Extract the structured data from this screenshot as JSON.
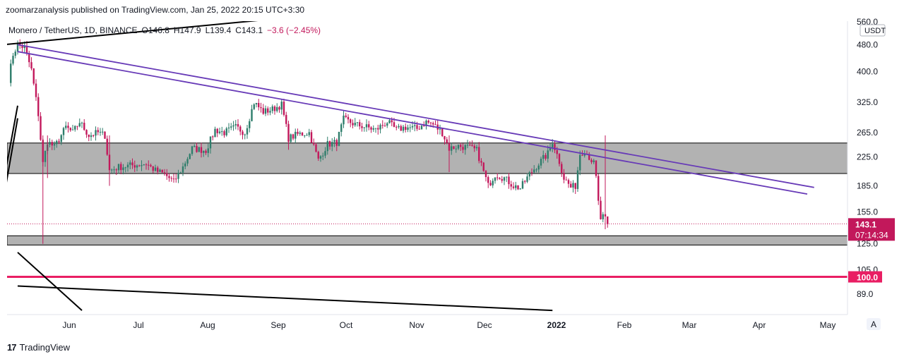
{
  "header": {
    "publisher": "zoomarzanalysis published on TradingView.com, Jan 25, 2022 20:15 UTC+3:30"
  },
  "legend": {
    "symbol": "Monero / TetherUS, 1D, BINANCE",
    "open": "O146.8",
    "high": "H147.9",
    "low": "L139.4",
    "close": "C143.1",
    "change": "−3.6 (−2.45%)"
  },
  "axis": {
    "currency_button": "USDT",
    "auto_button": "A",
    "current_price": "143.1",
    "countdown": "07:14:34",
    "level_label": "100.0"
  },
  "colors": {
    "up": "#26a69a",
    "down": "#ef5350",
    "candle_up": "#2e7d6b",
    "candle_down": "#c2185b",
    "trend_purple": "#673ab7",
    "trend_black": "#000000",
    "level_red": "#e91e63",
    "zone_fill": "#b2b2b2"
  },
  "footer": {
    "brand_mark": "17",
    "brand_name": "TradingView"
  },
  "chart_data": {
    "type": "candlestick",
    "title": "Monero / TetherUS, 1D, BINANCE",
    "scale": "log",
    "ylim": [
      80,
      560
    ],
    "y_ticks": [
      "560.0",
      "480.0",
      "400.0",
      "325.0",
      "265.0",
      "225.0",
      "185.0",
      "155.0",
      "125.0",
      "105.0",
      "89.0"
    ],
    "x_ticks": [
      "Jun",
      "Jul",
      "Aug",
      "Sep",
      "Oct",
      "Nov",
      "Dec",
      "2022",
      "Feb",
      "Mar",
      "Apr",
      "May"
    ],
    "current_price": 143.1,
    "horizontal_levels": [
      100
    ],
    "zones": [
      [
        201,
        247
      ],
      [
        124,
        132
      ]
    ],
    "anchors": [
      {
        "date": "May 9",
        "price": 380
      },
      {
        "date": "May 11",
        "price": 450
      },
      {
        "date": "May 13",
        "price": 480
      },
      {
        "date": "May 16",
        "price": 470
      },
      {
        "date": "May 19",
        "price": 405
      },
      {
        "date": "May 22",
        "price": 300
      },
      {
        "date": "May 24",
        "price": 215
      },
      {
        "date": "May 26",
        "price": 250
      },
      {
        "date": "May 29",
        "price": 240
      },
      {
        "date": "Jun 3",
        "price": 275
      },
      {
        "date": "Jun 6",
        "price": 265
      },
      {
        "date": "Jun 9",
        "price": 285
      },
      {
        "date": "Jun 13",
        "price": 260
      },
      {
        "date": "Jun 17",
        "price": 265
      },
      {
        "date": "Jun 20",
        "price": 260
      },
      {
        "date": "Jun 22",
        "price": 205
      },
      {
        "date": "Jun 26",
        "price": 210
      },
      {
        "date": "Jul 1",
        "price": 212
      },
      {
        "date": "Jul 8",
        "price": 215
      },
      {
        "date": "Jul 12",
        "price": 205
      },
      {
        "date": "Jul 16",
        "price": 200
      },
      {
        "date": "Jul 20",
        "price": 190
      },
      {
        "date": "Jul 24",
        "price": 210
      },
      {
        "date": "Jul 28",
        "price": 238
      },
      {
        "date": "Aug 3",
        "price": 235
      },
      {
        "date": "Aug 7",
        "price": 270
      },
      {
        "date": "Aug 11",
        "price": 265
      },
      {
        "date": "Aug 16",
        "price": 275
      },
      {
        "date": "Aug 20",
        "price": 265
      },
      {
        "date": "Aug 24",
        "price": 325
      },
      {
        "date": "Aug 28",
        "price": 305
      },
      {
        "date": "Sep 1",
        "price": 310
      },
      {
        "date": "Sep 5",
        "price": 320
      },
      {
        "date": "Sep 8",
        "price": 255
      },
      {
        "date": "Sep 12",
        "price": 262
      },
      {
        "date": "Sep 17",
        "price": 265
      },
      {
        "date": "Sep 21",
        "price": 220
      },
      {
        "date": "Sep 25",
        "price": 245
      },
      {
        "date": "Sep 29",
        "price": 248
      },
      {
        "date": "Oct 2",
        "price": 290
      },
      {
        "date": "Oct 7",
        "price": 280
      },
      {
        "date": "Oct 12",
        "price": 275
      },
      {
        "date": "Oct 16",
        "price": 270
      },
      {
        "date": "Oct 21",
        "price": 285
      },
      {
        "date": "Oct 25",
        "price": 270
      },
      {
        "date": "Oct 29",
        "price": 275
      },
      {
        "date": "Nov 3",
        "price": 272
      },
      {
        "date": "Nov 7",
        "price": 285
      },
      {
        "date": "Nov 10",
        "price": 280
      },
      {
        "date": "Nov 14",
        "price": 265
      },
      {
        "date": "Nov 17",
        "price": 238
      },
      {
        "date": "Nov 21",
        "price": 242
      },
      {
        "date": "Nov 25",
        "price": 240
      },
      {
        "date": "Nov 29",
        "price": 235
      },
      {
        "date": "Dec 4",
        "price": 185
      },
      {
        "date": "Dec 7",
        "price": 200
      },
      {
        "date": "Dec 11",
        "price": 195
      },
      {
        "date": "Dec 15",
        "price": 185
      },
      {
        "date": "Dec 18",
        "price": 182
      },
      {
        "date": "Dec 22",
        "price": 200
      },
      {
        "date": "Dec 26",
        "price": 215
      },
      {
        "date": "Dec 30",
        "price": 230
      },
      {
        "date": "Jan 1",
        "price": 250
      },
      {
        "date": "Jan 4",
        "price": 218
      },
      {
        "date": "Jan 6",
        "price": 195
      },
      {
        "date": "Jan 9",
        "price": 183
      },
      {
        "date": "Jan 11",
        "price": 185
      },
      {
        "date": "Jan 13",
        "price": 230
      },
      {
        "date": "Jan 15",
        "price": 235
      },
      {
        "date": "Jan 17",
        "price": 225
      },
      {
        "date": "Jan 19",
        "price": 215
      },
      {
        "date": "Jan 20",
        "price": 195
      },
      {
        "date": "Jan 21",
        "price": 165
      },
      {
        "date": "Jan 22",
        "price": 148
      },
      {
        "date": "Jan 23",
        "price": 150
      },
      {
        "date": "Jan 24",
        "price": 147
      },
      {
        "date": "Jan 25",
        "price": 143.1
      }
    ],
    "trendlines": [
      {
        "color": "purple",
        "from": {
          "date": "May 13",
          "price": 480
        },
        "to": {
          "date": "Apr 25",
          "price": 183
        }
      },
      {
        "color": "purple",
        "from": {
          "date": "May 13",
          "price": 458
        },
        "to": {
          "date": "Apr 22",
          "price": 175
        }
      },
      {
        "color": "black",
        "from": {
          "date": "May 7",
          "price": 480
        },
        "to": {
          "date": "Sep 12",
          "price": 580
        }
      },
      {
        "color": "black",
        "from": {
          "date": "May 7",
          "price": 192
        },
        "to": {
          "date": "May 13",
          "price": 318
        }
      },
      {
        "color": "black",
        "from": {
          "date": "May 7",
          "price": 172
        },
        "to": {
          "date": "May 13",
          "price": 292
        }
      },
      {
        "color": "black",
        "from": {
          "date": "Jun 10",
          "price": 79.7
        },
        "to": {
          "date": "May 13",
          "price": 118
        }
      },
      {
        "color": "black",
        "from": {
          "date": "Jan 1",
          "price": 79.7
        },
        "to": {
          "date": "May 13",
          "price": 94
        }
      }
    ]
  }
}
